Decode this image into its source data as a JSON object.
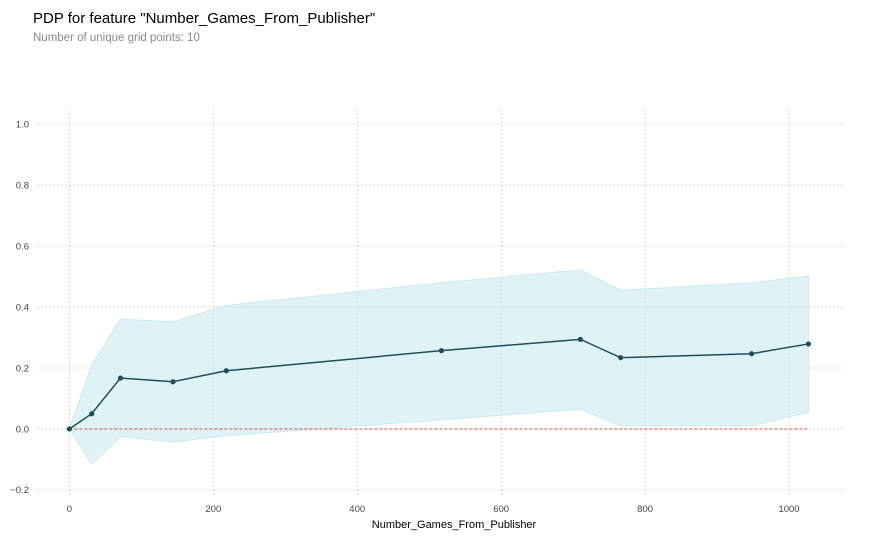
{
  "title": "PDP for feature \"Number_Games_From_Publisher\"",
  "subtitle": "Number of unique grid points: 10",
  "colors": {
    "line": "#1f4e5a",
    "band": "#c9ebf2",
    "baseline": "#d94f3d",
    "grid": "#d0d0d0"
  },
  "chart_data": {
    "type": "line",
    "xlabel": "Number_Games_From_Publisher",
    "ylabel": "",
    "xlim": [
      -45,
      1075
    ],
    "ylim": [
      -0.22,
      1.05
    ],
    "x_ticks": [
      0,
      200,
      400,
      600,
      800,
      1000
    ],
    "y_ticks": [
      -0.2,
      0.0,
      0.2,
      0.4,
      0.6,
      0.8,
      1.0
    ],
    "x_tick_labels": [
      "0",
      "200",
      "400",
      "600",
      "800",
      "1000"
    ],
    "y_tick_labels": [
      "−0.2",
      "0.0",
      "0.2",
      "0.4",
      "0.6",
      "0.8",
      "1.0"
    ],
    "grid": true,
    "x": [
      0,
      31,
      71,
      144,
      218,
      517,
      710,
      766,
      948,
      1027
    ],
    "series": [
      {
        "values": [
          0.0,
          0.05,
          0.167,
          0.155,
          0.191,
          0.257,
          0.294,
          0.234,
          0.247,
          0.279
        ]
      }
    ],
    "band_upper": [
      0.0,
      0.21,
      0.36,
      0.352,
      0.405,
      0.48,
      0.522,
      0.455,
      0.48,
      0.502
    ],
    "band_lower": [
      0.0,
      -0.115,
      -0.025,
      -0.043,
      -0.022,
      0.03,
      0.065,
      0.01,
      0.01,
      0.055
    ],
    "baseline": 0.0
  }
}
